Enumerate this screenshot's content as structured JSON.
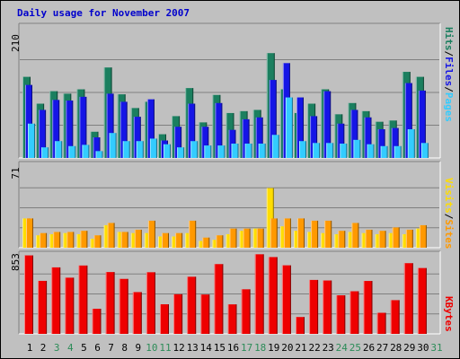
{
  "title": "Daily usage for November 2007",
  "colors": {
    "hits": "#1B7F5F",
    "files": "#1515E6",
    "pages": "#33CCFF",
    "visits": "#FFDD00",
    "sites": "#FF9900",
    "kbytes": "#EE0000",
    "weekend_label": "#2C8C58",
    "weekday_label": "#000000"
  },
  "chart_data": [
    {
      "type": "bar",
      "panel": "requests",
      "scale_label": "210",
      "ylim": [
        0,
        210
      ],
      "legend": [
        "Pages",
        "Files",
        "Hits"
      ],
      "legend_separator": "/",
      "categories": [
        "1",
        "2",
        "3",
        "4",
        "5",
        "6",
        "7",
        "8",
        "9",
        "10",
        "11",
        "12",
        "13",
        "14",
        "15",
        "16",
        "17",
        "18",
        "19",
        "20",
        "21",
        "22",
        "23",
        "24",
        "25",
        "26",
        "27",
        "28",
        "29",
        "30",
        "31"
      ],
      "weekend_days": [
        "3",
        "4",
        "10",
        "11",
        "17",
        "18",
        "24",
        "25",
        "31"
      ],
      "series": [
        {
          "name": "Hits",
          "values": [
            130,
            87,
            107,
            103,
            110,
            42,
            145,
            102,
            80,
            90,
            38,
            67,
            112,
            57,
            101,
            72,
            75,
            77,
            168,
            110,
            72,
            87,
            110,
            70,
            88,
            75,
            58,
            60,
            138,
            130,
            0
          ]
        },
        {
          "name": "Files",
          "values": [
            117,
            77,
            93,
            92,
            98,
            33,
            103,
            90,
            66,
            94,
            28,
            50,
            87,
            50,
            88,
            45,
            62,
            65,
            125,
            152,
            97,
            67,
            107,
            55,
            77,
            65,
            46,
            48,
            120,
            108,
            0
          ]
        },
        {
          "name": "Pages",
          "values": [
            55,
            17,
            27,
            19,
            21,
            11,
            40,
            27,
            27,
            31,
            22,
            17,
            27,
            20,
            20,
            23,
            23,
            23,
            37,
            97,
            27,
            24,
            24,
            23,
            29,
            22,
            19,
            19,
            46,
            24,
            0
          ]
        }
      ]
    },
    {
      "type": "bar",
      "panel": "visitors",
      "scale_label": "71",
      "ylim": [
        0,
        71
      ],
      "legend": [
        "Sites",
        "Visits"
      ],
      "legend_separator": "/",
      "categories": [
        "1",
        "2",
        "3",
        "4",
        "5",
        "6",
        "7",
        "8",
        "9",
        "10",
        "11",
        "12",
        "13",
        "14",
        "15",
        "16",
        "17",
        "18",
        "19",
        "20",
        "21",
        "22",
        "23",
        "24",
        "25",
        "26",
        "27",
        "28",
        "29",
        "30",
        "31"
      ],
      "series": [
        {
          "name": "Visits",
          "values": [
            26,
            11,
            12,
            13,
            12,
            8,
            20,
            14,
            13,
            13,
            10,
            10,
            13,
            6,
            7,
            12,
            15,
            17,
            53,
            19,
            15,
            14,
            13,
            12,
            14,
            13,
            12,
            13,
            12,
            17,
            0
          ]
        },
        {
          "name": "Sites",
          "values": [
            26,
            13,
            14,
            14,
            15,
            11,
            22,
            14,
            16,
            24,
            13,
            13,
            24,
            9,
            11,
            17,
            17,
            17,
            26,
            26,
            26,
            24,
            24,
            15,
            22,
            16,
            15,
            18,
            16,
            20,
            0
          ]
        }
      ]
    },
    {
      "type": "bar",
      "panel": "kbytes",
      "scale_label": "853",
      "ylim": [
        0,
        853
      ],
      "legend": [
        "KBytes"
      ],
      "categories": [
        "1",
        "2",
        "3",
        "4",
        "5",
        "6",
        "7",
        "8",
        "9",
        "10",
        "11",
        "12",
        "13",
        "14",
        "15",
        "16",
        "17",
        "18",
        "19",
        "20",
        "21",
        "22",
        "23",
        "24",
        "25",
        "26",
        "27",
        "28",
        "29",
        "30",
        "31"
      ],
      "series": [
        {
          "name": "KBytes",
          "values": [
            838,
            566,
            710,
            600,
            730,
            268,
            660,
            587,
            446,
            658,
            316,
            423,
            610,
            420,
            745,
            315,
            476,
            850,
            820,
            732,
            180,
            576,
            570,
            412,
            455,
            565,
            225,
            360,
            755,
            703,
            0
          ]
        }
      ]
    }
  ]
}
